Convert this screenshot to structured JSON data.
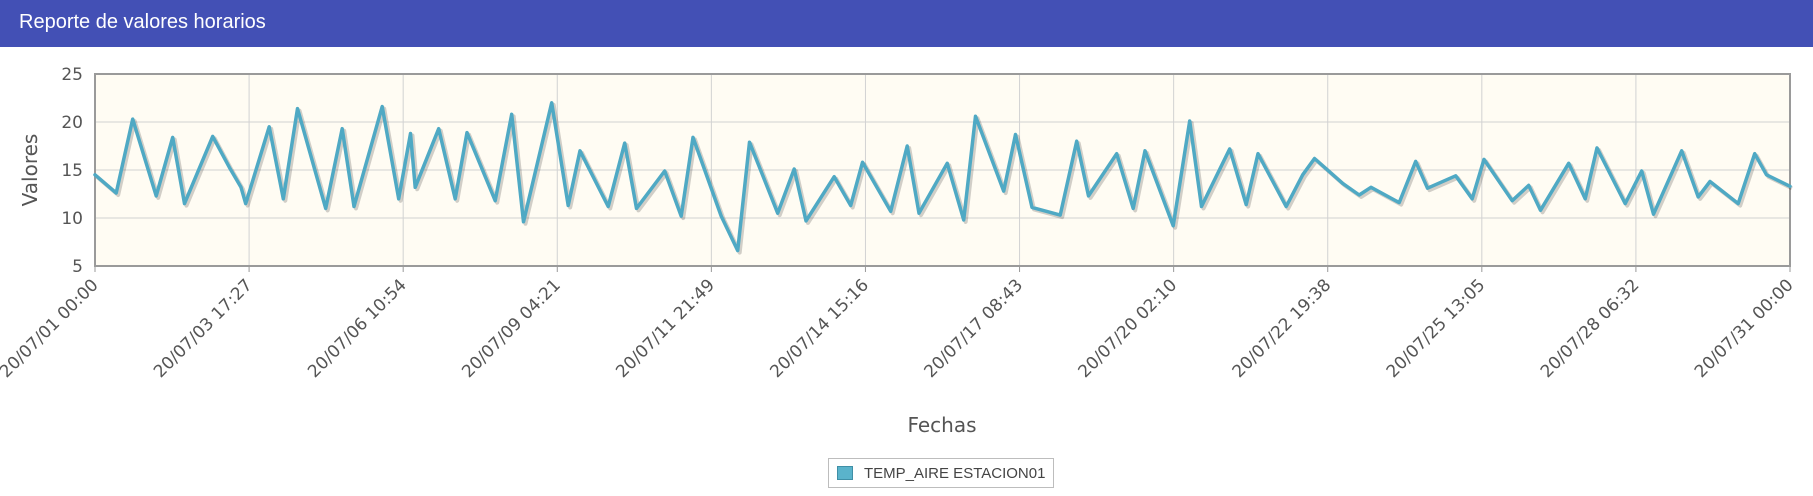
{
  "header": {
    "title": "Reporte de valores horarios"
  },
  "legend": {
    "label": "TEMP_AIRE ESTACION01"
  },
  "colors": {
    "header_bg": "#4350b5",
    "line": "#4fa9c4",
    "plot_bg": "#fffcf3",
    "grid": "#d2d2d2"
  },
  "chart_data": {
    "type": "line",
    "xlabel": "Fechas",
    "ylabel": "Valores",
    "ylim": [
      5,
      25
    ],
    "yticks": [
      "5",
      "10",
      "15",
      "20",
      "25"
    ],
    "xrange": [
      "2020-07-01 00:00",
      "2020-07-31 00:00"
    ],
    "xticks": [
      "20/07/01 00:00",
      "20/07/03 17:27",
      "20/07/06 10:54",
      "20/07/09 04:21",
      "20/07/11 21:49",
      "20/07/14 15:16",
      "20/07/17 08:43",
      "20/07/20 02:10",
      "20/07/22 19:38",
      "20/07/25 13:05",
      "20/07/28 06:32",
      "20/07/31 00:00"
    ],
    "grid": true,
    "legend_position": "bottom-center",
    "series": [
      {
        "name": "TEMP_AIRE ESTACION01",
        "x": [
          "2020-07-01 00:00",
          "2020-07-01 09:00",
          "2020-07-01 16:00",
          "2020-07-02 02:00",
          "2020-07-02 09:00",
          "2020-07-02 14:00",
          "2020-07-03 02:00",
          "2020-07-03 09:00",
          "2020-07-03 14:00",
          "2020-07-03 16:00",
          "2020-07-04 02:00",
          "2020-07-04 08:00",
          "2020-07-04 14:00",
          "2020-07-05 02:00",
          "2020-07-05 09:00",
          "2020-07-05 14:00",
          "2020-07-06 02:00",
          "2020-07-06 09:00",
          "2020-07-06 14:00",
          "2020-07-06 16:00",
          "2020-07-07 02:00",
          "2020-07-07 09:00",
          "2020-07-07 14:00",
          "2020-07-08 02:00",
          "2020-07-08 09:00",
          "2020-07-08 14:00",
          "2020-07-09 02:00",
          "2020-07-09 09:00",
          "2020-07-09 14:00",
          "2020-07-10 02:00",
          "2020-07-10 09:00",
          "2020-07-10 14:00",
          "2020-07-11 02:00",
          "2020-07-11 09:00",
          "2020-07-11 14:00",
          "2020-07-12 02:00",
          "2020-07-12 09:00",
          "2020-07-12 14:00",
          "2020-07-13 02:00",
          "2020-07-13 09:00",
          "2020-07-13 14:00",
          "2020-07-14 02:00",
          "2020-07-14 09:00",
          "2020-07-14 14:00",
          "2020-07-15 02:00",
          "2020-07-15 09:00",
          "2020-07-15 14:00",
          "2020-07-16 02:00",
          "2020-07-16 09:00",
          "2020-07-16 14:00",
          "2020-07-17 02:00",
          "2020-07-17 07:00",
          "2020-07-17 14:00",
          "2020-07-18 02:00",
          "2020-07-18 09:00",
          "2020-07-18 14:00",
          "2020-07-19 02:00",
          "2020-07-19 09:00",
          "2020-07-19 14:00",
          "2020-07-20 02:00",
          "2020-07-20 09:00",
          "2020-07-20 14:00",
          "2020-07-21 02:00",
          "2020-07-21 09:00",
          "2020-07-21 14:00",
          "2020-07-22 02:00",
          "2020-07-22 09:00",
          "2020-07-22 14:00",
          "2020-07-23 02:00",
          "2020-07-23 09:00",
          "2020-07-23 14:00",
          "2020-07-24 02:00",
          "2020-07-24 09:00",
          "2020-07-24 14:00",
          "2020-07-25 02:00",
          "2020-07-25 09:00",
          "2020-07-25 14:00",
          "2020-07-26 02:00",
          "2020-07-26 09:00",
          "2020-07-26 14:00",
          "2020-07-27 02:00",
          "2020-07-27 09:00",
          "2020-07-27 14:00",
          "2020-07-28 02:00",
          "2020-07-28 09:00",
          "2020-07-28 14:00",
          "2020-07-29 02:00",
          "2020-07-29 09:00",
          "2020-07-29 14:00",
          "2020-07-30 02:00",
          "2020-07-30 09:00",
          "2020-07-30 14:00",
          "2020-07-31 00:00"
        ],
        "values": [
          14.5,
          12.6,
          20.3,
          12.3,
          18.4,
          11.5,
          18.5,
          15.3,
          13.2,
          11.5,
          19.5,
          12.0,
          21.4,
          11.0,
          19.3,
          11.2,
          21.6,
          12.0,
          18.8,
          13.2,
          19.3,
          12.0,
          18.9,
          11.8,
          20.8,
          9.6,
          22.0,
          11.3,
          17.0,
          11.2,
          17.8,
          11.0,
          14.9,
          10.2,
          18.4,
          10.2,
          6.6,
          17.9,
          10.5,
          15.1,
          9.7,
          14.3,
          11.3,
          15.8,
          10.7,
          17.5,
          10.5,
          15.7,
          9.8,
          20.6,
          12.8,
          18.7,
          11.1,
          10.3,
          18.0,
          12.3,
          16.7,
          11.0,
          17.0,
          9.2,
          20.1,
          11.2,
          17.2,
          11.4,
          16.7,
          11.2,
          14.5,
          16.2,
          13.6,
          12.4,
          13.2,
          11.6,
          15.9,
          13.1,
          14.4,
          12.0,
          16.1,
          11.8,
          13.4,
          10.8,
          15.7,
          12.0,
          17.3,
          11.5,
          14.9,
          10.4,
          17.0,
          12.2,
          13.8,
          11.5,
          16.7,
          14.5,
          13.3
        ]
      }
    ]
  }
}
